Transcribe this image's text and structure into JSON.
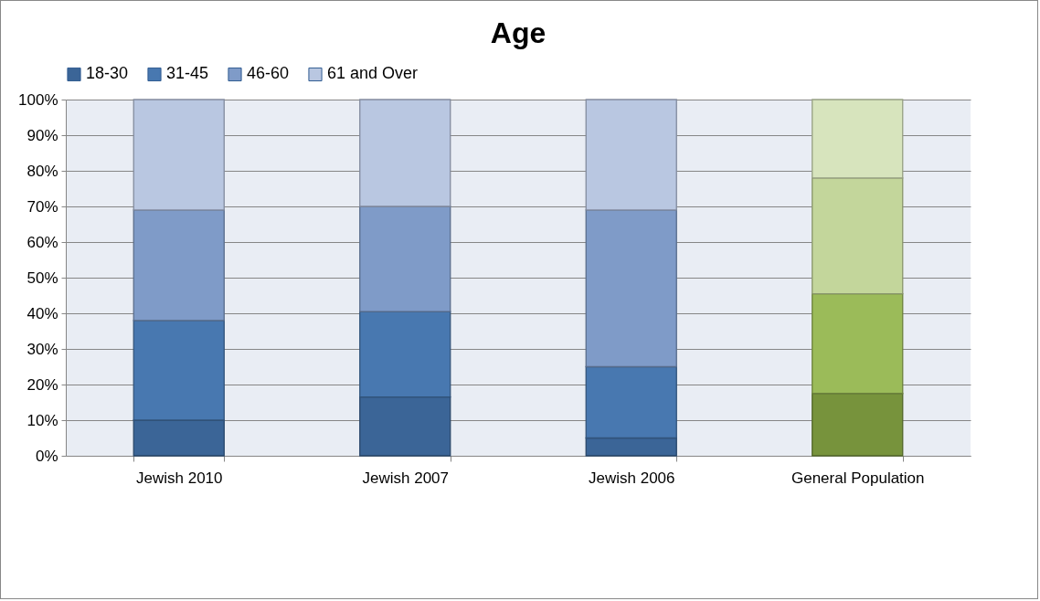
{
  "chart_data": {
    "type": "bar",
    "title": "Age",
    "stacked": true,
    "legend": "top",
    "categories": [
      "Jewish 2010",
      "Jewish 2007",
      "Jewish 2006",
      "General Population"
    ],
    "series": [
      {
        "name": "18-30",
        "color": "#3b6597",
        "colors": [
          "#3b6597",
          "#3b6597",
          "#3b6597",
          "#77933c"
        ],
        "values": [
          10,
          16.5,
          5,
          17.5
        ]
      },
      {
        "name": "31-45",
        "color": "#4878b0",
        "colors": [
          "#4878b0",
          "#4878b0",
          "#4878b0",
          "#9bbb59"
        ],
        "values": [
          28,
          24,
          20,
          28
        ]
      },
      {
        "name": "46-60",
        "color": "#7f9bc8",
        "colors": [
          "#7f9bc8",
          "#7f9bc8",
          "#7f9bc8",
          "#c3d69b"
        ],
        "values": [
          31,
          29.5,
          44,
          32.5
        ]
      },
      {
        "name": "61 and Over",
        "color": "#b9c7e1",
        "colors": [
          "#b9c7e1",
          "#b9c7e1",
          "#b9c7e1",
          "#d7e4bd"
        ],
        "values": [
          31,
          30,
          31,
          22
        ]
      }
    ],
    "ylim": [
      0,
      100
    ],
    "yticks": [
      {
        "value": 0,
        "label": "0%"
      },
      {
        "value": 10,
        "label": "10%"
      },
      {
        "value": 20,
        "label": "20%"
      },
      {
        "value": 30,
        "label": "30%"
      },
      {
        "value": 40,
        "label": "40%"
      },
      {
        "value": 50,
        "label": "50%"
      },
      {
        "value": 60,
        "label": "60%"
      },
      {
        "value": 70,
        "label": "70%"
      },
      {
        "value": 80,
        "label": "80%"
      },
      {
        "value": 90,
        "label": "90%"
      },
      {
        "value": 100,
        "label": "100%"
      }
    ],
    "grid": "y"
  }
}
